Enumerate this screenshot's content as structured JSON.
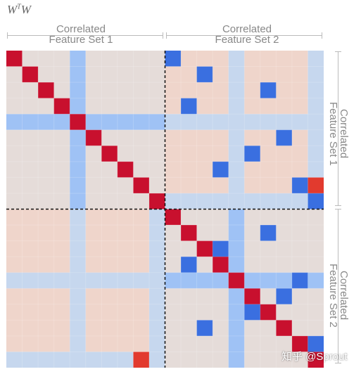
{
  "title": {
    "base": "W",
    "sup": "T",
    "tail": "W"
  },
  "col_labels": [
    {
      "line1": "Correlated",
      "line2": "Feature Set 1"
    },
    {
      "line1": "Correlated",
      "line2": "Feature Set 2"
    }
  ],
  "row_labels": [
    {
      "line1": "Correlated",
      "line2": "Feature Set 1"
    },
    {
      "line1": "Correlated",
      "line2": "Feature Set 2"
    }
  ],
  "watermark": "知乎 @Sprout",
  "colors": {
    "off_block_bg": "#e5dcd9",
    "in_block_bg": "#efd5cb",
    "diagonal": "#c8102e",
    "strong_negative": "#3a6fe0",
    "band": "#9fc2f5",
    "band_light": "#c6d7ee",
    "strong_positive": "#e23a2e",
    "divider": "#111111"
  },
  "matrix": {
    "size": 20,
    "block_size": 10,
    "block_divisions": [
      4,
      9
    ],
    "feature_bands": [
      {
        "block": 0,
        "index": 4
      },
      {
        "block": 1,
        "index": 14
      }
    ],
    "negative_cells": [
      [
        10,
        10
      ],
      [
        13,
        11
      ],
      [
        17,
        12
      ],
      [
        12,
        13
      ],
      [
        16,
        15
      ],
      [
        11,
        16
      ],
      [
        15,
        17
      ],
      [
        14,
        18
      ],
      [
        18,
        19
      ],
      [
        0,
        10
      ],
      [
        3,
        11
      ],
      [
        1,
        12
      ],
      [
        7,
        13
      ],
      [
        6,
        15
      ],
      [
        2,
        16
      ],
      [
        5,
        17
      ],
      [
        8,
        18
      ],
      [
        9,
        19
      ]
    ],
    "positive_cells": [
      [
        8,
        19
      ],
      [
        19,
        8
      ]
    ]
  }
}
